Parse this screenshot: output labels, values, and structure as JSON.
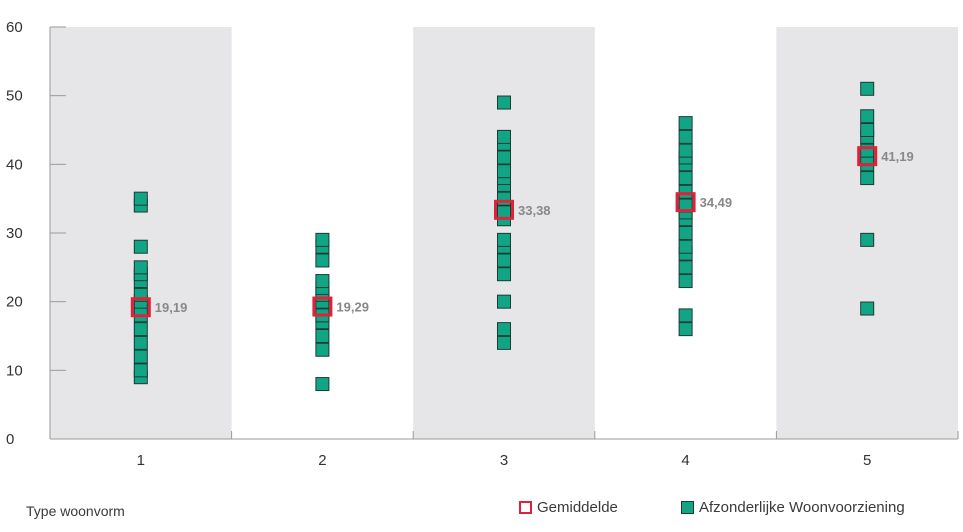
{
  "chart_data": {
    "type": "scatter",
    "x_title": "Type woonvorm",
    "categories": [
      "1",
      "2",
      "3",
      "4",
      "5"
    ],
    "y_ticks": [
      "0",
      "10",
      "20",
      "30",
      "40",
      "50",
      "60"
    ],
    "ylim": [
      0,
      60
    ],
    "band_shading": [
      true,
      false,
      true,
      false,
      true
    ],
    "series": [
      {
        "name": "Afzonderlijke Woonvoorziening",
        "color": "#12a585",
        "points": [
          {
            "x": "1",
            "values": [
              9,
              10,
              12,
              14,
              16,
              18,
              19,
              20,
              21,
              23,
              24,
              25,
              28,
              34,
              35
            ]
          },
          {
            "x": "2",
            "values": [
              8,
              13,
              15,
              17,
              18,
              20,
              21,
              22,
              23,
              26,
              28,
              29
            ]
          },
          {
            "x": "3",
            "values": [
              14,
              16,
              20,
              24,
              26,
              28,
              29,
              32,
              33,
              35,
              37,
              38,
              39,
              41,
              43,
              44,
              49
            ]
          },
          {
            "x": "4",
            "values": [
              16,
              18,
              23,
              25,
              27,
              28,
              30,
              32,
              33,
              34,
              36,
              38,
              40,
              41,
              42,
              44,
              46
            ]
          },
          {
            "x": "5",
            "values": [
              19,
              29,
              38,
              40,
              41,
              42,
              44,
              45,
              47,
              51
            ]
          }
        ]
      },
      {
        "name": "Gemiddelde",
        "color": "#e0213a",
        "points": [
          {
            "x": "1",
            "value": 19.19,
            "label": "19,19"
          },
          {
            "x": "2",
            "value": 19.29,
            "label": "19,29"
          },
          {
            "x": "3",
            "value": 33.38,
            "label": "33,38"
          },
          {
            "x": "4",
            "value": 34.49,
            "label": "34,49"
          },
          {
            "x": "5",
            "value": 41.19,
            "label": "41,19"
          }
        ]
      }
    ],
    "legend_placement": "bottom-right",
    "grid": false
  },
  "legend": {
    "mean_label": "Gemiddelde",
    "points_label": "Afzonderlijke Woonvoorziening"
  }
}
